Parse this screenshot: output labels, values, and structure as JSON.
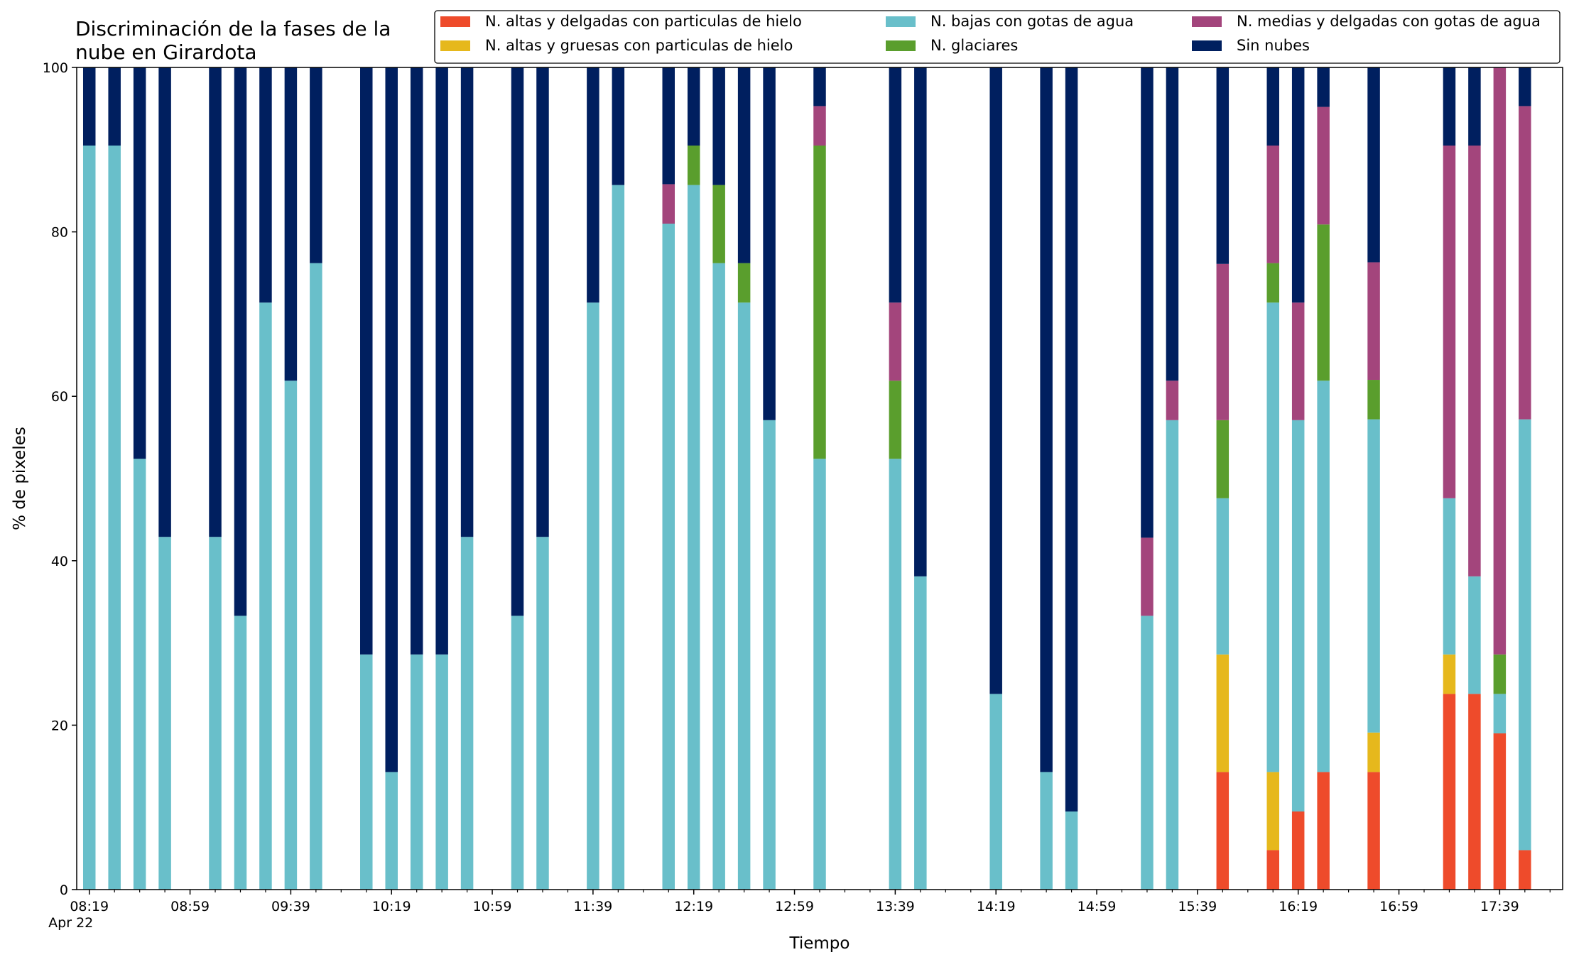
{
  "chart_data": {
    "type": "bar",
    "stacked": true,
    "title_lines": [
      "Discriminación de la fases de la",
      "nube en Girardota"
    ],
    "xlabel": "Tiempo",
    "ylabel": "% de pixeles",
    "ylim": [
      0,
      100
    ],
    "yticks": [
      0,
      20,
      40,
      60,
      80,
      100
    ],
    "xlim": [
      -0.5,
      58.5
    ],
    "xticks": [
      {
        "pos": 0,
        "lines": [
          "08:19",
          "Apr 22"
        ]
      },
      {
        "pos": 4,
        "lines": [
          "08:59"
        ]
      },
      {
        "pos": 8,
        "lines": [
          "09:39"
        ]
      },
      {
        "pos": 12,
        "lines": [
          "10:19"
        ]
      },
      {
        "pos": 16,
        "lines": [
          "10:59"
        ]
      },
      {
        "pos": 20,
        "lines": [
          "11:39"
        ]
      },
      {
        "pos": 24,
        "lines": [
          "12:19"
        ]
      },
      {
        "pos": 28,
        "lines": [
          "12:59"
        ]
      },
      {
        "pos": 32,
        "lines": [
          "13:39"
        ]
      },
      {
        "pos": 36,
        "lines": [
          "14:19"
        ]
      },
      {
        "pos": 40,
        "lines": [
          "14:59"
        ]
      },
      {
        "pos": 44,
        "lines": [
          "15:39"
        ]
      },
      {
        "pos": 48,
        "lines": [
          "16:19"
        ]
      },
      {
        "pos": 52,
        "lines": [
          "16:59"
        ]
      },
      {
        "pos": 56,
        "lines": [
          "17:39"
        ]
      }
    ],
    "minor_tick_step": 1,
    "legend_position": "top-right",
    "series": [
      {
        "name": "N. altas y delgadas con particulas de hielo",
        "color": "#ee4b2b"
      },
      {
        "name": "N. altas y gruesas con particulas de hielo",
        "color": "#e6b81c"
      },
      {
        "name": "N. bajas con gotas de agua",
        "color": "#69bfca"
      },
      {
        "name": "N. glaciares",
        "color": "#5a9e2d"
      },
      {
        "name": "N. medias y delgadas con gotas de agua",
        "color": "#a3457c"
      },
      {
        "name": "Sin nubes",
        "color": "#001f5f"
      }
    ],
    "bars": [
      {
        "x": 0,
        "v": [
          0,
          0,
          90.5,
          0,
          0,
          9.5
        ]
      },
      {
        "x": 1,
        "v": [
          0,
          0,
          90.5,
          0,
          0,
          9.5
        ]
      },
      {
        "x": 2,
        "v": [
          0,
          0,
          52.4,
          0,
          0,
          47.6
        ]
      },
      {
        "x": 3,
        "v": [
          0,
          0,
          42.9,
          0,
          0,
          57.1
        ]
      },
      {
        "x": 5,
        "v": [
          0,
          0,
          42.9,
          0,
          0,
          57.1
        ]
      },
      {
        "x": 6,
        "v": [
          0,
          0,
          33.3,
          0,
          0,
          66.7
        ]
      },
      {
        "x": 7,
        "v": [
          0,
          0,
          71.4,
          0,
          0,
          28.6
        ]
      },
      {
        "x": 8,
        "v": [
          0,
          0,
          61.9,
          0,
          0,
          38.1
        ]
      },
      {
        "x": 9,
        "v": [
          0,
          0,
          76.2,
          0,
          0,
          23.8
        ]
      },
      {
        "x": 11,
        "v": [
          0,
          0,
          28.6,
          0,
          0,
          71.4
        ]
      },
      {
        "x": 12,
        "v": [
          0,
          0,
          14.3,
          0,
          0,
          85.7
        ]
      },
      {
        "x": 13,
        "v": [
          0,
          0,
          28.6,
          0,
          0,
          71.4
        ]
      },
      {
        "x": 14,
        "v": [
          0,
          0,
          28.6,
          0,
          0,
          71.4
        ]
      },
      {
        "x": 15,
        "v": [
          0,
          0,
          42.9,
          0,
          0,
          57.1
        ]
      },
      {
        "x": 17,
        "v": [
          0,
          0,
          33.3,
          0,
          0,
          66.7
        ]
      },
      {
        "x": 18,
        "v": [
          0,
          0,
          42.9,
          0,
          0,
          57.1
        ]
      },
      {
        "x": 20,
        "v": [
          0,
          0,
          71.4,
          0,
          0,
          28.6
        ]
      },
      {
        "x": 21,
        "v": [
          0,
          0,
          85.7,
          0,
          0,
          14.3
        ]
      },
      {
        "x": 23,
        "v": [
          0,
          0,
          81.0,
          0,
          4.8,
          14.2
        ]
      },
      {
        "x": 24,
        "v": [
          0,
          0,
          85.7,
          4.8,
          0,
          9.5
        ]
      },
      {
        "x": 25,
        "v": [
          0,
          0,
          76.2,
          9.5,
          0,
          14.3
        ]
      },
      {
        "x": 26,
        "v": [
          0,
          0,
          71.4,
          4.8,
          0,
          23.8
        ]
      },
      {
        "x": 27,
        "v": [
          0,
          0,
          57.1,
          0,
          0,
          42.9
        ]
      },
      {
        "x": 29,
        "v": [
          0,
          0,
          52.4,
          38.1,
          4.8,
          4.7
        ]
      },
      {
        "x": 32,
        "v": [
          0,
          0,
          52.4,
          9.5,
          9.5,
          28.6
        ]
      },
      {
        "x": 33,
        "v": [
          0,
          0,
          38.1,
          0,
          0,
          61.9
        ]
      },
      {
        "x": 36,
        "v": [
          0,
          0,
          23.8,
          0,
          0,
          76.2
        ]
      },
      {
        "x": 38,
        "v": [
          0,
          0,
          14.3,
          0,
          0,
          85.7
        ]
      },
      {
        "x": 39,
        "v": [
          0,
          0,
          9.5,
          0,
          0,
          90.5
        ]
      },
      {
        "x": 42,
        "v": [
          0,
          0,
          33.3,
          0,
          9.5,
          57.2
        ]
      },
      {
        "x": 43,
        "v": [
          0,
          0,
          57.1,
          0,
          4.8,
          38.1
        ]
      },
      {
        "x": 45,
        "v": [
          14.3,
          14.3,
          19.0,
          9.5,
          19.0,
          23.9
        ]
      },
      {
        "x": 47,
        "v": [
          4.8,
          9.5,
          57.1,
          4.8,
          14.3,
          9.5
        ]
      },
      {
        "x": 48,
        "v": [
          9.5,
          0,
          47.6,
          0,
          14.3,
          28.6
        ]
      },
      {
        "x": 49,
        "v": [
          14.3,
          0,
          47.6,
          19.0,
          14.3,
          4.8
        ]
      },
      {
        "x": 51,
        "v": [
          14.3,
          4.8,
          38.1,
          4.8,
          14.3,
          23.7
        ]
      },
      {
        "x": 54,
        "v": [
          23.8,
          4.8,
          19.0,
          0,
          42.9,
          9.5
        ]
      },
      {
        "x": 55,
        "v": [
          23.8,
          0,
          14.3,
          0,
          52.4,
          9.5
        ]
      },
      {
        "x": 56,
        "v": [
          19.0,
          0,
          4.8,
          4.8,
          71.4,
          0
        ]
      },
      {
        "x": 57,
        "v": [
          4.8,
          0,
          52.4,
          0,
          38.1,
          4.7
        ]
      }
    ]
  }
}
